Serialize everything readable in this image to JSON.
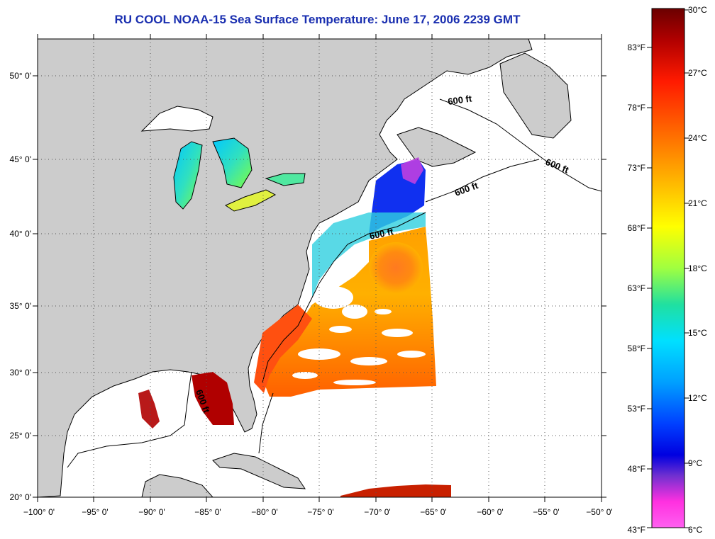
{
  "title": "RU COOL  NOAA-15  Sea Surface Temperature:  June 17, 2006 2239 GMT",
  "lat_labels": [
    "50° 0'",
    "45° 0'",
    "40° 0'",
    "35° 0'",
    "30° 0'",
    "25° 0'",
    "20° 0'"
  ],
  "lon_labels": [
    "−100° 0'",
    "−95° 0'",
    "−90° 0'",
    "−85° 0'",
    "−80° 0'",
    "−75° 0'",
    "−70° 0'",
    "−65° 0'",
    "−60° 0'",
    "−55° 0'",
    "−50° 0'"
  ],
  "contour_labels": [
    "600 ft",
    "600 ft",
    "600 ft",
    "600 ft",
    "600 ft"
  ],
  "colorbar": {
    "celsius": [
      "30°C",
      "27°C",
      "24°C",
      "21°C",
      "18°C",
      "15°C",
      "12°C",
      "9°C",
      "6°C"
    ],
    "fahrenheit": [
      "83°F",
      "78°F",
      "73°F",
      "68°F",
      "63°F",
      "58°F",
      "53°F",
      "48°F",
      "43°F"
    ]
  },
  "colors": {
    "title": "#1a2fb0",
    "land": "#cccccc",
    "ocean": "#ffffff"
  }
}
